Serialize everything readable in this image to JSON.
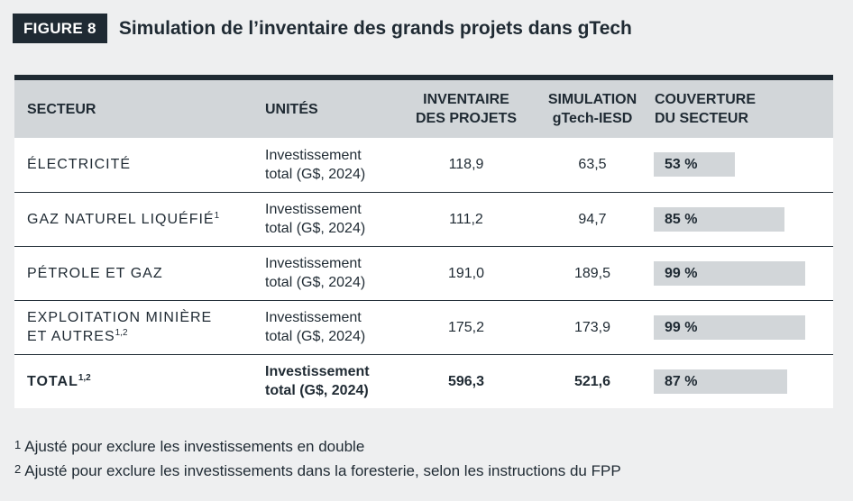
{
  "figure": {
    "label": "FIGURE 8",
    "title": "Simulation de l’inventaire des grands projets dans gTech"
  },
  "table": {
    "headers": {
      "secteur": "SECTEUR",
      "unites": "UNITÉS",
      "inventaire_l1": "INVENTAIRE",
      "inventaire_l2": "DES PROJETS",
      "simulation_l1": "SIMULATION",
      "simulation_l2": "gTech-IESD",
      "couverture_l1": "COUVERTURE",
      "couverture_l2": "DU SECTEUR"
    },
    "rows": [
      {
        "secteur_l1": "ÉLECTRICITÉ",
        "secteur_l2": "",
        "sup": "",
        "unites_l1": "Investissement",
        "unites_l2": "total (G$, 2024)",
        "inventaire": "118,9",
        "simulation": "63,5",
        "couverture": "53 %",
        "couverture_value": 0.53
      },
      {
        "secteur_l1": "GAZ NATUREL LIQUÉFIÉ",
        "secteur_l2": "",
        "sup": "1",
        "unites_l1": "Investissement",
        "unites_l2": "total (G$, 2024)",
        "inventaire": "111,2",
        "simulation": "94,7",
        "couverture": "85 %",
        "couverture_value": 0.85
      },
      {
        "secteur_l1": "PÉTROLE ET GAZ",
        "secteur_l2": "",
        "sup": "",
        "unites_l1": "Investissement",
        "unites_l2": "total (G$, 2024)",
        "inventaire": "191,0",
        "simulation": "189,5",
        "couverture": "99 %",
        "couverture_value": 0.99
      },
      {
        "secteur_l1": "EXPLOITATION MINIÈRE",
        "secteur_l2": "ET AUTRES",
        "sup": "1,2",
        "unites_l1": "Investissement",
        "unites_l2": "total (G$, 2024)",
        "inventaire": "175,2",
        "simulation": "173,9",
        "couverture": "99 %",
        "couverture_value": 0.99
      }
    ],
    "total": {
      "secteur": "TOTAL",
      "sup": "1,2",
      "unites_l1": "Investissement",
      "unites_l2": "total (G$, 2024)",
      "inventaire": "596,3",
      "simulation": "521,6",
      "couverture": "87 %",
      "couverture_value": 0.87
    }
  },
  "footnotes": [
    {
      "num": "1",
      "text": "Ajusté pour exclure les investissements en double"
    },
    {
      "num": "2",
      "text": "Ajusté pour exclure les investissements dans la foresterie, selon les instructions du FPP"
    }
  ],
  "colors": {
    "dark": "#1f2a33",
    "header_bg": "#d2d6d9",
    "bar_bg": "#d2d6d9",
    "page_bg": "#eeeff0"
  }
}
